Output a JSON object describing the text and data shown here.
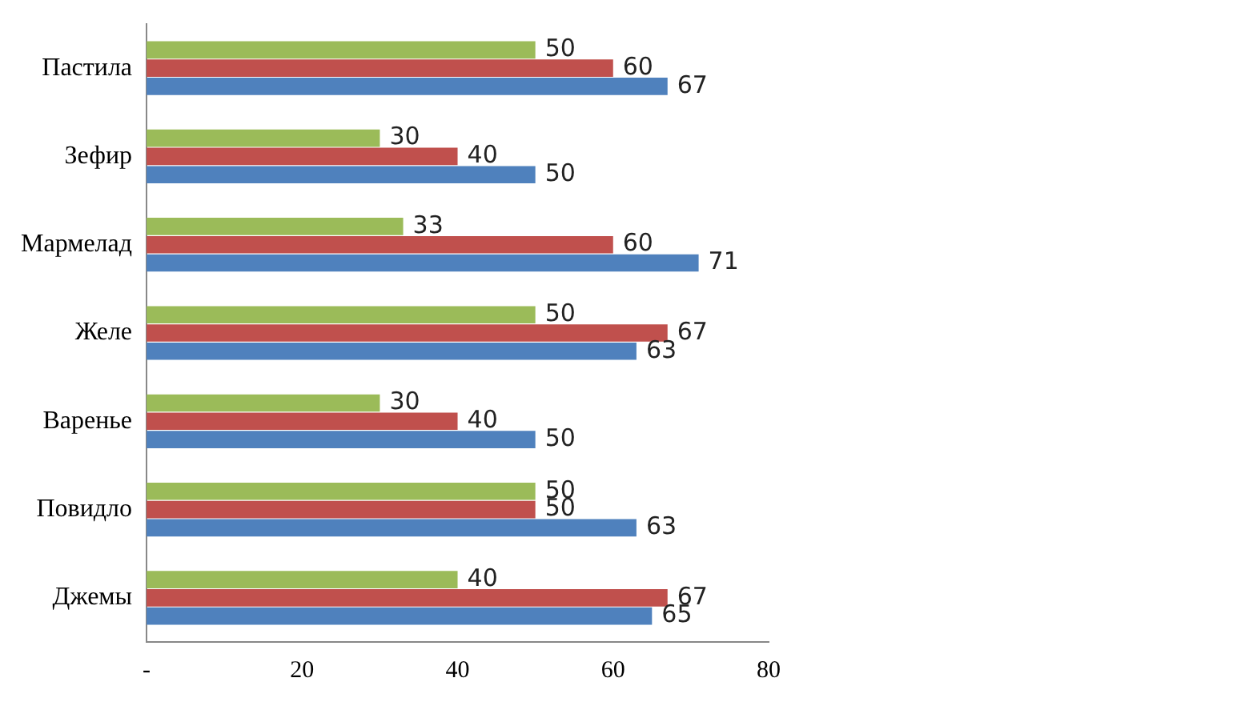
{
  "chart_data": {
    "type": "bar",
    "orientation": "horizontal",
    "categories": [
      "Пастила",
      "Зефир",
      "Мармелад",
      "Желе",
      "Варенье",
      "Повидло",
      "Джемы"
    ],
    "series": [
      {
        "color": "#9bbb59",
        "values": [
          50,
          30,
          33,
          50,
          30,
          50,
          40
        ]
      },
      {
        "color": "#c0504d",
        "values": [
          60,
          40,
          60,
          67,
          40,
          50,
          67
        ]
      },
      {
        "color": "#4f81bd",
        "values": [
          67,
          50,
          71,
          63,
          50,
          63,
          65
        ]
      }
    ],
    "xlim": [
      0,
      80
    ],
    "xticks": [
      {
        "value": 0,
        "label": "-"
      },
      20,
      40,
      60,
      80
    ],
    "grid": false,
    "legend": false,
    "data_labels": true
  }
}
